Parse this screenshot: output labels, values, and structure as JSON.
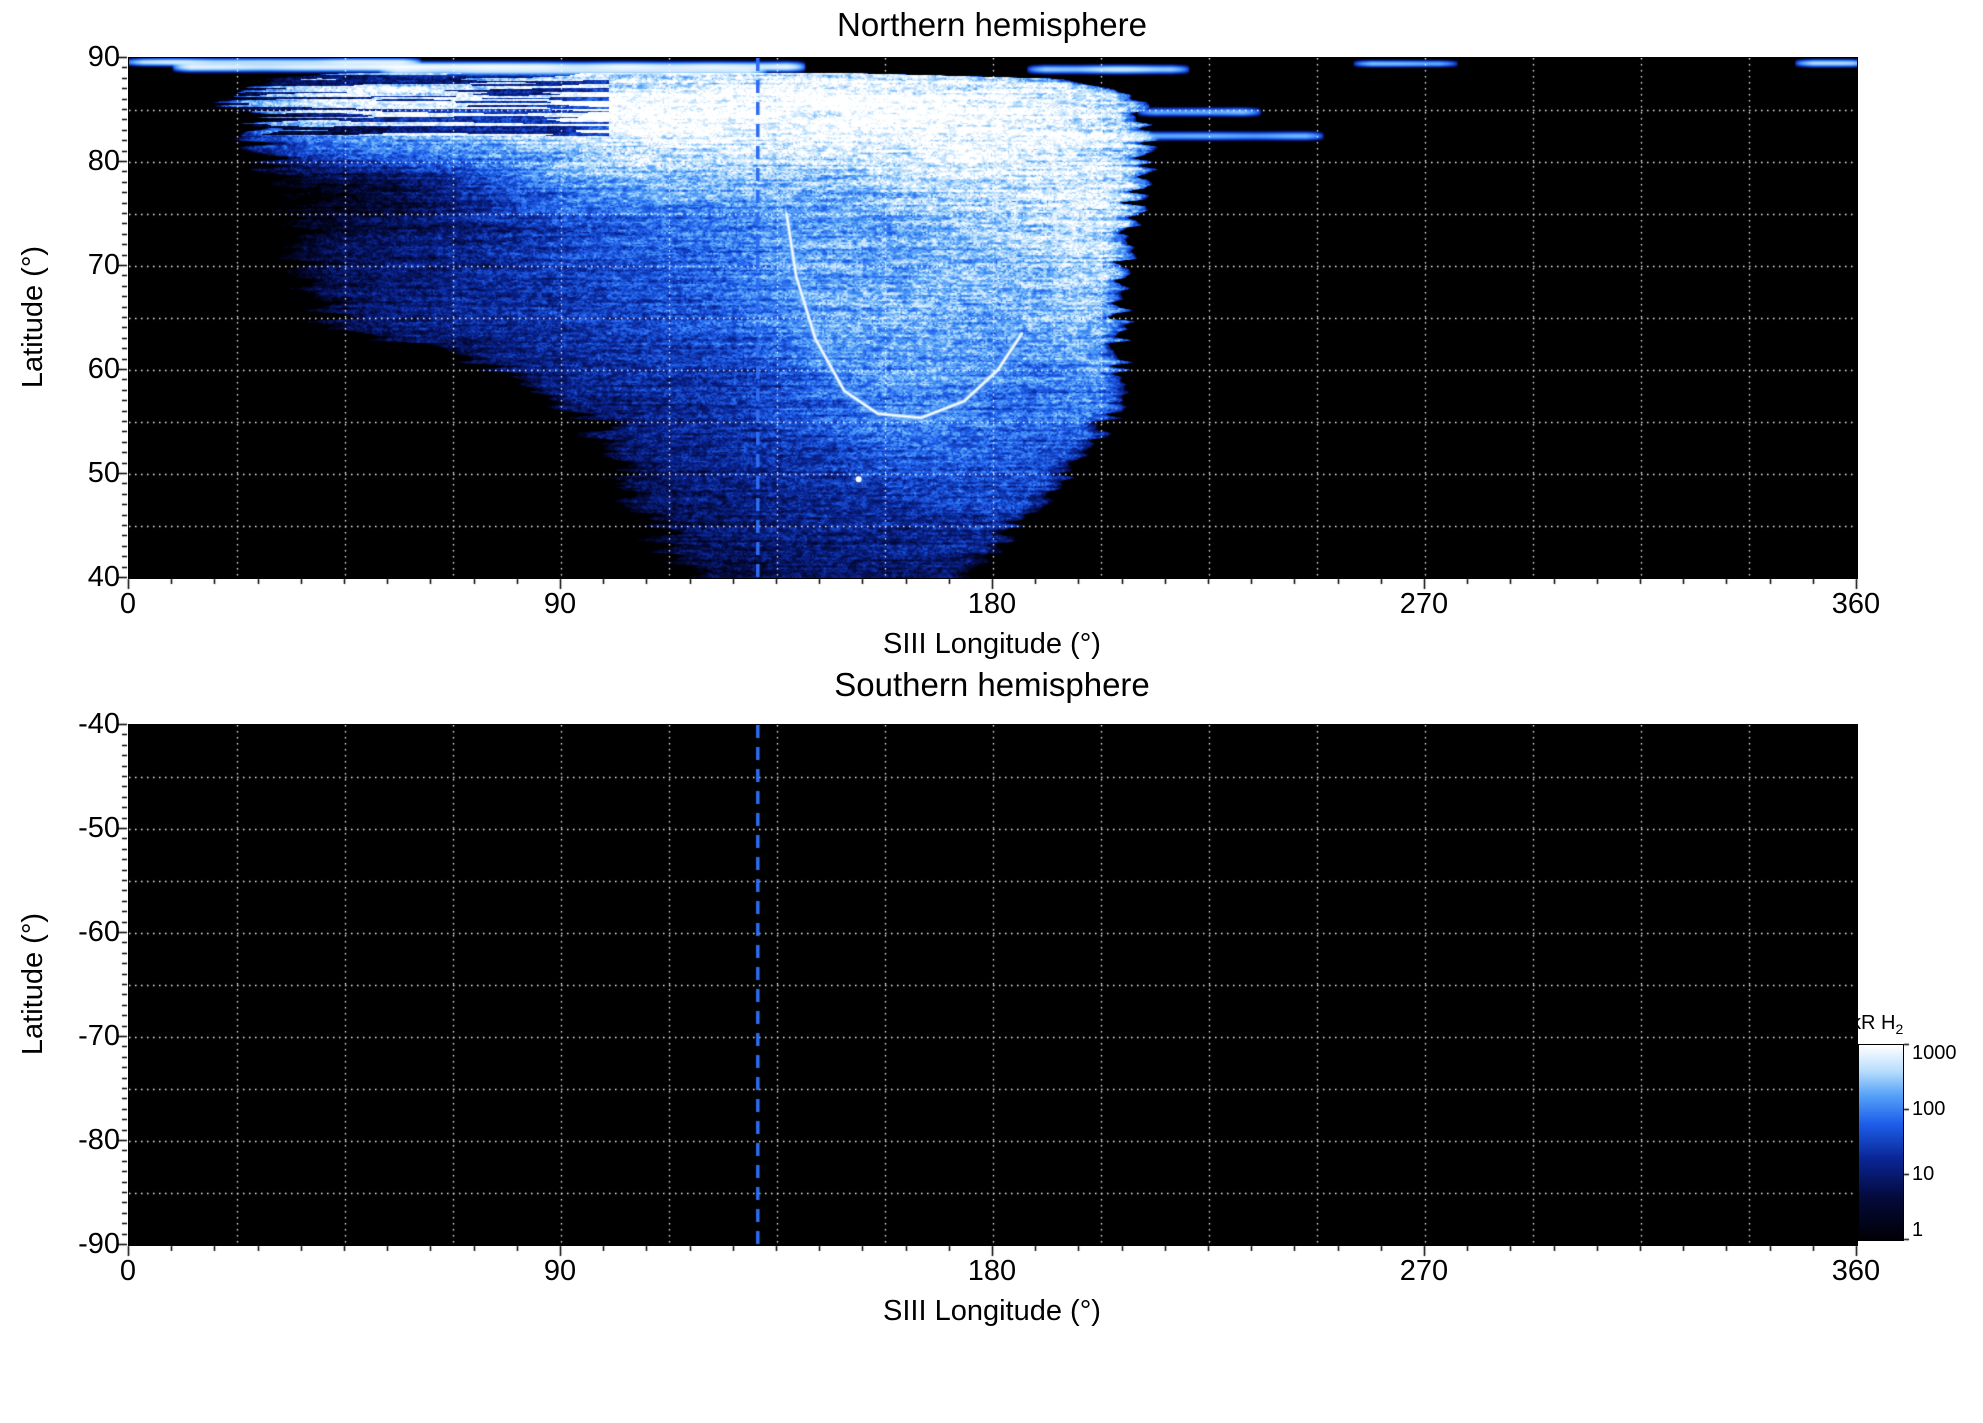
{
  "chart_data": {
    "type": "heatmap",
    "panels": [
      {
        "id": "north",
        "title": "Northern hemisphere",
        "xlabel": "SIII Longitude (°)",
        "ylabel": "Latitude (°)",
        "xlim": [
          0,
          360
        ],
        "ylim": [
          40,
          90
        ],
        "xticks": [
          0,
          90,
          180,
          270,
          360
        ],
        "yticks": [
          90,
          80,
          70,
          60,
          50,
          40
        ],
        "x_minor_step": 9,
        "y_minor_step": 1,
        "grid_lon_step": 22.5,
        "grid_lat_step": 5,
        "dashed_line_lon": 131,
        "has_emission": true
      },
      {
        "id": "south",
        "title": "Southern hemisphere",
        "xlabel": "SIII Longitude (°)",
        "ylabel": "Latitude (°)",
        "xlim": [
          0,
          360
        ],
        "ylim": [
          -90,
          -40
        ],
        "xticks": [
          0,
          90,
          180,
          270,
          360
        ],
        "yticks": [
          -40,
          -50,
          -60,
          -70,
          -80,
          -90
        ],
        "x_minor_step": 9,
        "y_minor_step": 1,
        "grid_lon_step": 22.5,
        "grid_lat_step": 5,
        "dashed_line_lon": 131,
        "has_emission": false
      }
    ],
    "colorbar": {
      "label_main": "kR H",
      "label_sub": "2",
      "scale": "log",
      "range": [
        1,
        1000
      ],
      "ticks": [
        1000,
        100,
        10,
        1
      ],
      "stops": [
        {
          "t": 0.0,
          "c": [
            0,
            0,
            3
          ]
        },
        {
          "t": 0.22,
          "c": [
            4,
            10,
            60
          ]
        },
        {
          "t": 0.42,
          "c": [
            10,
            38,
            150
          ]
        },
        {
          "t": 0.6,
          "c": [
            30,
            95,
            235
          ]
        },
        {
          "t": 0.75,
          "c": [
            90,
            165,
            248
          ]
        },
        {
          "t": 0.87,
          "c": [
            185,
            222,
            252
          ]
        },
        {
          "t": 1.0,
          "c": [
            255,
            255,
            255
          ]
        }
      ]
    },
    "style": {
      "dashed_line_color": "#2e6cf2",
      "grid_color": "#ffffff",
      "plot_background": "#000000",
      "figure_background": "#ffffff",
      "text_color": "#000000"
    },
    "emission_features": {
      "coverage": [
        [
          40,
          113,
          177
        ],
        [
          45,
          107,
          186
        ],
        [
          50,
          101,
          196
        ],
        [
          55,
          95,
          205
        ],
        [
          58,
          88,
          206
        ],
        [
          61,
          70,
          207
        ],
        [
          64,
          42,
          207
        ],
        [
          68,
          35,
          207
        ],
        [
          72,
          33,
          208
        ],
        [
          76,
          31,
          210
        ],
        [
          80,
          28,
          212
        ],
        [
          83,
          26,
          212
        ],
        [
          85.5,
          23,
          210
        ],
        [
          87,
          22,
          206
        ],
        [
          88,
          24,
          196
        ],
        [
          88.6,
          40,
          150
        ]
      ],
      "blobs": [
        {
          "lon": 145,
          "lat": 85.5,
          "slon": 38,
          "slat": 2.6,
          "amp": 1600
        },
        {
          "lon": 113,
          "lat": 82.5,
          "slon": 18,
          "slat": 3.5,
          "amp": 800
        },
        {
          "lon": 172,
          "lat": 82,
          "slon": 20,
          "slat": 4,
          "amp": 900
        },
        {
          "lon": 190,
          "lat": 75,
          "slon": 15,
          "slat": 6,
          "amp": 450
        },
        {
          "lon": 203,
          "lat": 69,
          "slon": 9,
          "slat": 8,
          "amp": 380
        },
        {
          "lon": 205,
          "lat": 78,
          "slon": 10,
          "slat": 5,
          "amp": 300
        },
        {
          "lon": 165,
          "lat": 64,
          "slon": 14,
          "slat": 7,
          "amp": 260
        },
        {
          "lon": 142,
          "lat": 70,
          "slon": 10,
          "slat": 5,
          "amp": 160
        },
        {
          "lon": 128,
          "lat": 74,
          "slon": 28,
          "slat": 9,
          "amp": 90
        },
        {
          "lon": 65,
          "lat": 84.5,
          "slon": 22,
          "slat": 2.2,
          "amp": 420
        },
        {
          "lon": 48,
          "lat": 86.5,
          "slon": 14,
          "slat": 1.4,
          "amp": 300
        },
        {
          "lon": 188,
          "lat": 55,
          "slon": 14,
          "slat": 8,
          "amp": 60
        },
        {
          "lon": 150,
          "lat": 55,
          "slon": 30,
          "slat": 9,
          "amp": 26
        },
        {
          "lon": 100,
          "lat": 68,
          "slon": 30,
          "slat": 9,
          "amp": 14
        },
        {
          "lon": 60,
          "lat": 67,
          "slon": 18,
          "slat": 5,
          "amp": 10
        },
        {
          "lon": 145,
          "lat": 45,
          "slon": 22,
          "slat": 6,
          "amp": 7
        }
      ],
      "polar_streaks": [
        {
          "lat": 89.6,
          "lon0": 2,
          "lon1": 58,
          "amp": 700,
          "th": 0.22
        },
        {
          "lat": 89.15,
          "lon0": 12,
          "lon1": 138,
          "amp": 800,
          "th": 0.28
        },
        {
          "lat": 88.75,
          "lon0": 55,
          "lon1": 130,
          "amp": 500,
          "th": 0.25
        },
        {
          "lat": 88.9,
          "lon0": 190,
          "lon1": 218,
          "amp": 420,
          "th": 0.25
        },
        {
          "lat": 89.45,
          "lon0": 258,
          "lon1": 274,
          "amp": 260,
          "th": 0.2
        },
        {
          "lat": 89.5,
          "lon0": 350,
          "lon1": 360,
          "amp": 300,
          "th": 0.22
        },
        {
          "lat": 84.8,
          "lon0": 213,
          "lon1": 233,
          "amp": 350,
          "th": 0.25
        },
        {
          "lat": 82.5,
          "lon0": 210,
          "lon1": 246,
          "amp": 280,
          "th": 0.25
        }
      ],
      "main_arc": {
        "points": [
          [
            137,
            75
          ],
          [
            139,
            69
          ],
          [
            143,
            63
          ],
          [
            149,
            58
          ],
          [
            156,
            55.8
          ],
          [
            165,
            55.4
          ],
          [
            174,
            57
          ],
          [
            181,
            60
          ],
          [
            186,
            63.5
          ]
        ],
        "bright_spot": [
          152,
          49.5
        ]
      }
    }
  }
}
